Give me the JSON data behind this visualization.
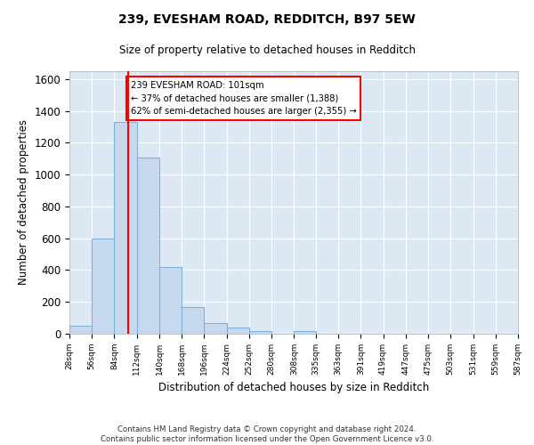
{
  "title1": "239, EVESHAM ROAD, REDDITCH, B97 5EW",
  "title2": "Size of property relative to detached houses in Redditch",
  "xlabel": "Distribution of detached houses by size in Redditch",
  "ylabel": "Number of detached properties",
  "bar_heights": [
    50,
    600,
    1330,
    1110,
    420,
    170,
    65,
    40,
    15,
    0,
    15,
    0,
    0,
    0,
    0,
    0,
    0,
    0,
    0,
    0
  ],
  "bin_edges": [
    28,
    56,
    84,
    112,
    140,
    168,
    196,
    224,
    252,
    280,
    308,
    335,
    363,
    391,
    419,
    447,
    475,
    503,
    531,
    559,
    587
  ],
  "bar_color": "#c5d8ed",
  "bar_edgecolor": "#7aadd4",
  "property_line_x": 101,
  "ylim": [
    0,
    1650
  ],
  "yticks": [
    0,
    200,
    400,
    600,
    800,
    1000,
    1200,
    1400,
    1600
  ],
  "annotation_text": "239 EVESHAM ROAD: 101sqm\n← 37% of detached houses are smaller (1,388)\n62% of semi-detached houses are larger (2,355) →",
  "footer": "Contains HM Land Registry data © Crown copyright and database right 2024.\nContains public sector information licensed under the Open Government Licence v3.0.",
  "bg_color": "#dce9f5",
  "plot_bg_color": "#dce9f5"
}
